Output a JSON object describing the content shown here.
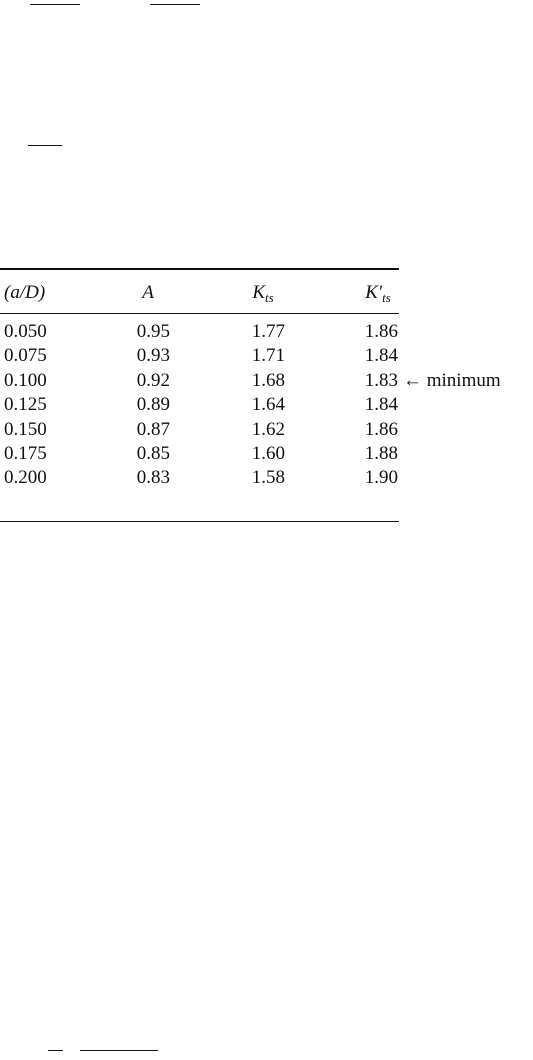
{
  "table": {
    "header": [
      {
        "base": "(a/D)"
      },
      {
        "base": "A"
      },
      {
        "base": "K",
        "sub": "ts"
      },
      {
        "base": "K′",
        "sub": "ts"
      }
    ],
    "rows": [
      [
        "0.050",
        "0.95",
        "1.77",
        "1.86"
      ],
      [
        "0.075",
        "0.93",
        "1.71",
        "1.84"
      ],
      [
        "0.100",
        "0.92",
        "1.68",
        "1.83"
      ],
      [
        "0.125",
        "0.89",
        "1.64",
        "1.84"
      ],
      [
        "0.150",
        "0.87",
        "1.62",
        "1.86"
      ],
      [
        "0.175",
        "0.85",
        "1.60",
        "1.88"
      ],
      [
        "0.200",
        "0.83",
        "1.58",
        "1.90"
      ]
    ],
    "annotation": {
      "row": 2,
      "text": "← minimum"
    }
  }
}
